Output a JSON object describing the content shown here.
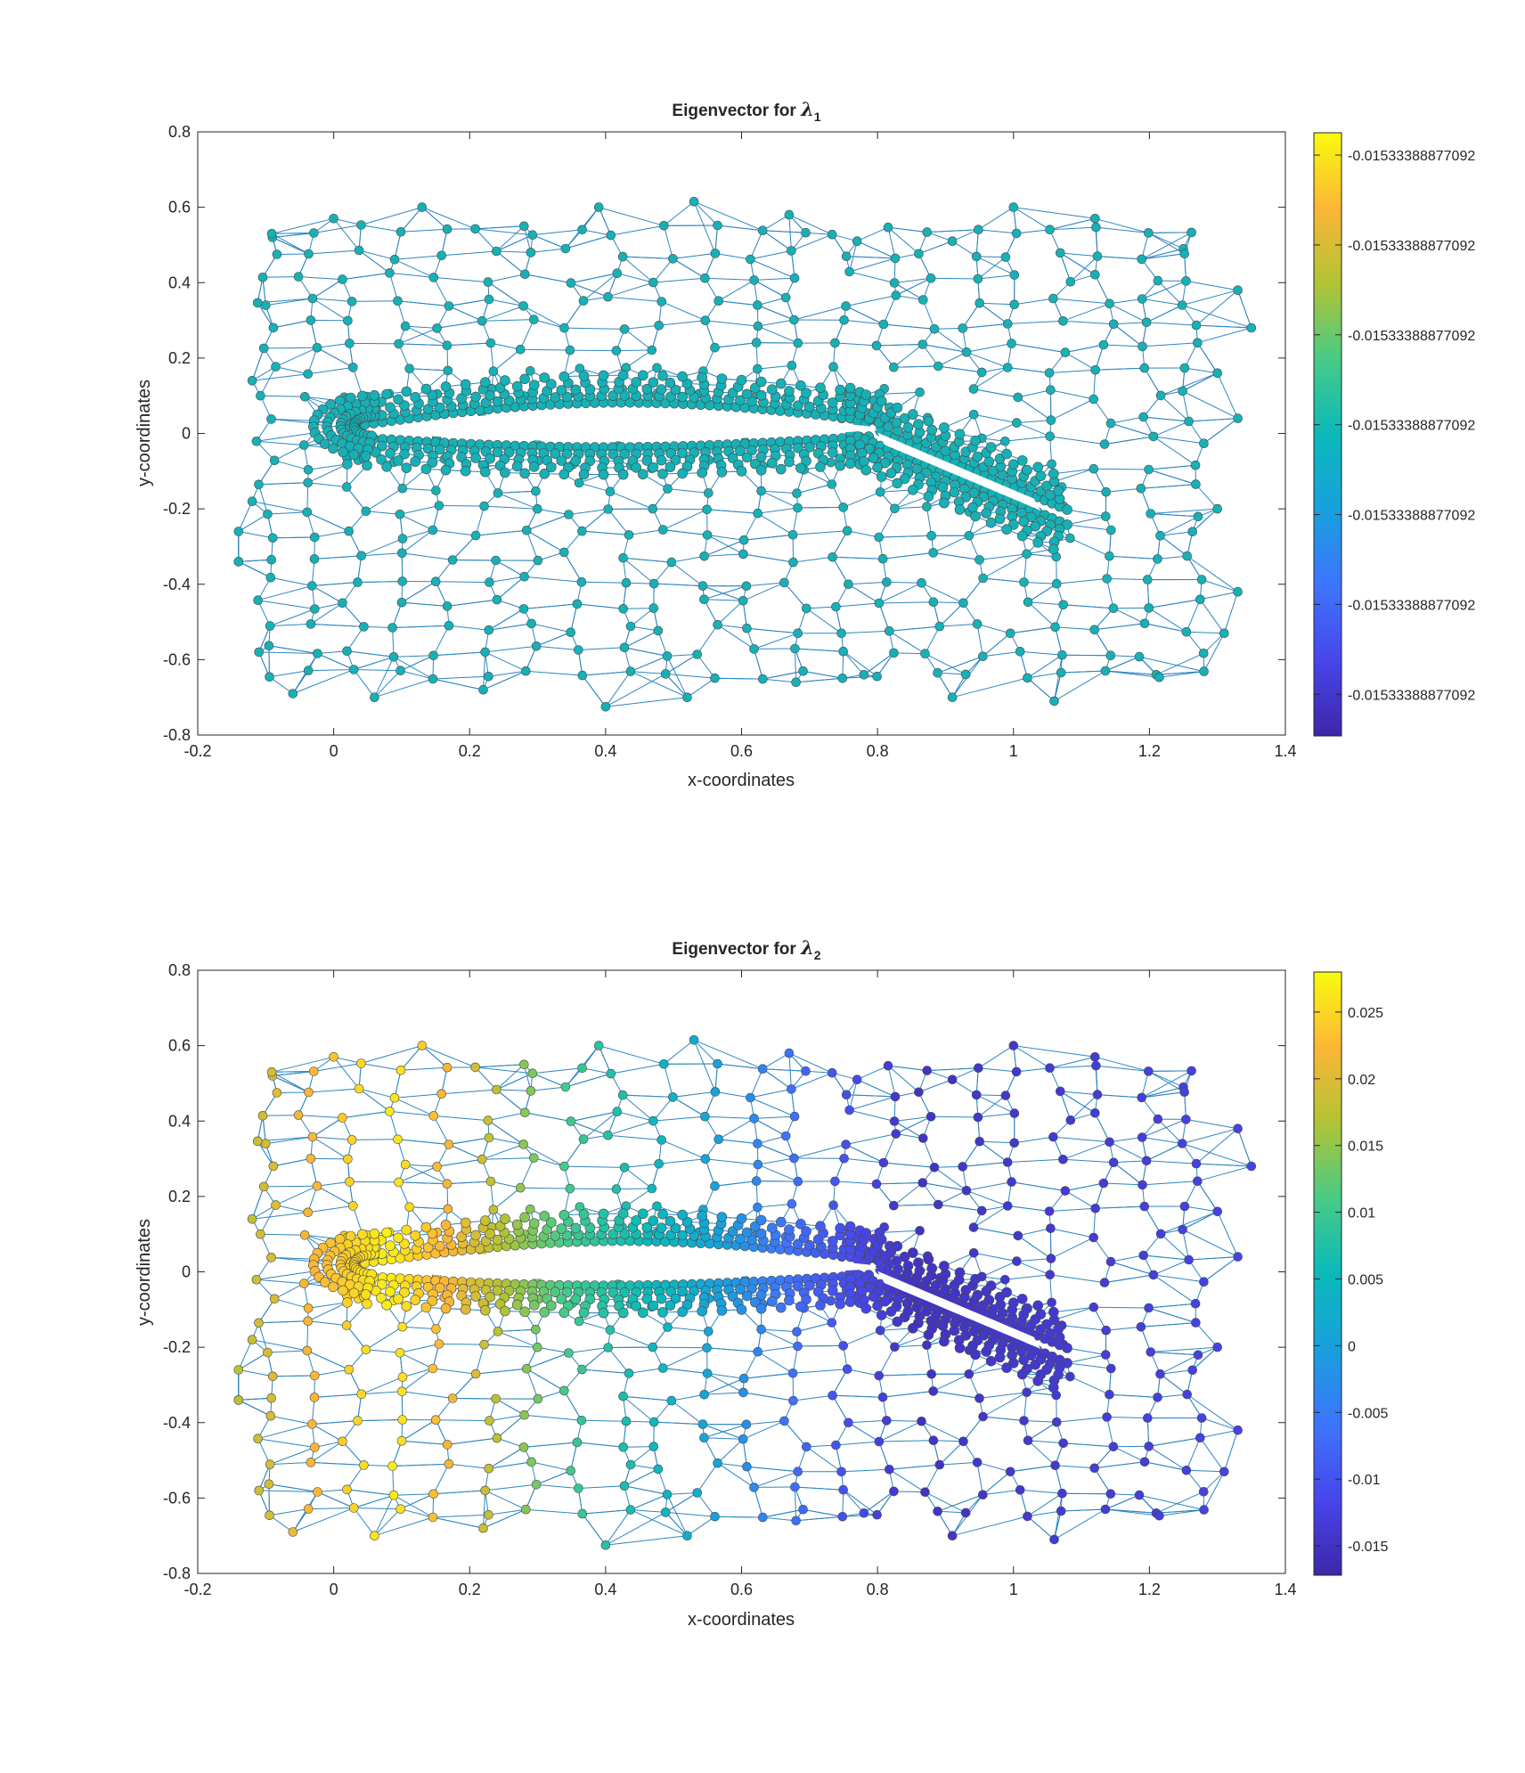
{
  "chart_data": [
    {
      "type": "scatter",
      "title": "Eigenvector for ",
      "title_symbol": "λ",
      "title_subscript": "1",
      "xlabel": "x-coordinates",
      "ylabel": "y-coordinates",
      "xlim": [
        -0.2,
        1.4
      ],
      "ylim": [
        -0.8,
        0.8
      ],
      "xticks": [
        "-0.2",
        "0",
        "0.2",
        "0.4",
        "0.6",
        "0.8",
        "1",
        "1.2",
        "1.4"
      ],
      "yticks": [
        "-0.8",
        "-0.6",
        "-0.4",
        "-0.2",
        "0",
        "0.2",
        "0.4",
        "0.6",
        "0.8"
      ],
      "grid": false,
      "legend": "none",
      "colorbar": {
        "position": "right",
        "tick_labels": [
          "-0.01533388877092",
          "-0.01533388877092",
          "-0.01533388877092",
          "-0.01533388877092",
          "-0.01533388877092",
          "-0.01533388877092",
          "-0.01533388877092"
        ],
        "tick_fractions": [
          0.963,
          0.814,
          0.665,
          0.516,
          0.367,
          0.218,
          0.069
        ],
        "colormap": "parula"
      },
      "color_mode": "constant",
      "constant_color": "#15b1b6",
      "edge_color": "#2e86c1",
      "airfoil": {
        "main": [
          [
            0.0,
            0.0
          ],
          [
            0.8,
            0.02
          ]
        ],
        "flap": [
          [
            0.77,
            0.0
          ],
          [
            1.06,
            -0.2
          ]
        ]
      }
    },
    {
      "type": "scatter",
      "title": "Eigenvector for ",
      "title_symbol": "λ",
      "title_subscript": "2",
      "xlabel": "x-coordinates",
      "ylabel": "y-coordinates",
      "xlim": [
        -0.2,
        1.4
      ],
      "ylim": [
        -0.8,
        0.8
      ],
      "xticks": [
        "-0.2",
        "0",
        "0.2",
        "0.4",
        "0.6",
        "0.8",
        "1",
        "1.2",
        "1.4"
      ],
      "yticks": [
        "-0.8",
        "-0.6",
        "-0.4",
        "-0.2",
        "0",
        "0.2",
        "0.4",
        "0.6",
        "0.8"
      ],
      "grid": false,
      "legend": "none",
      "colorbar": {
        "position": "right",
        "tick_labels": [
          "0.025",
          "0.02",
          "0.015",
          "0.01",
          "0.005",
          "0",
          "-0.005",
          "-0.01",
          "-0.015"
        ],
        "tick_values": [
          0.025,
          0.02,
          0.015,
          0.01,
          0.005,
          0,
          -0.005,
          -0.01,
          -0.015
        ],
        "clim": [
          -0.0172,
          0.028
        ],
        "colormap": "parula"
      },
      "color_mode": "field",
      "field_profile": {
        "x": [
          -0.15,
          0.08,
          0.2,
          0.35,
          0.5,
          0.7,
          0.85,
          1.0,
          1.35
        ],
        "value": [
          0.017,
          0.027,
          0.02,
          0.01,
          0.004,
          -0.008,
          -0.015,
          -0.014,
          -0.012
        ]
      },
      "edge_color": "#2e86c1",
      "airfoil": {
        "main": [
          [
            0.0,
            0.0
          ],
          [
            0.8,
            0.02
          ]
        ],
        "flap": [
          [
            0.77,
            0.0
          ],
          [
            1.06,
            -0.2
          ]
        ]
      }
    }
  ]
}
